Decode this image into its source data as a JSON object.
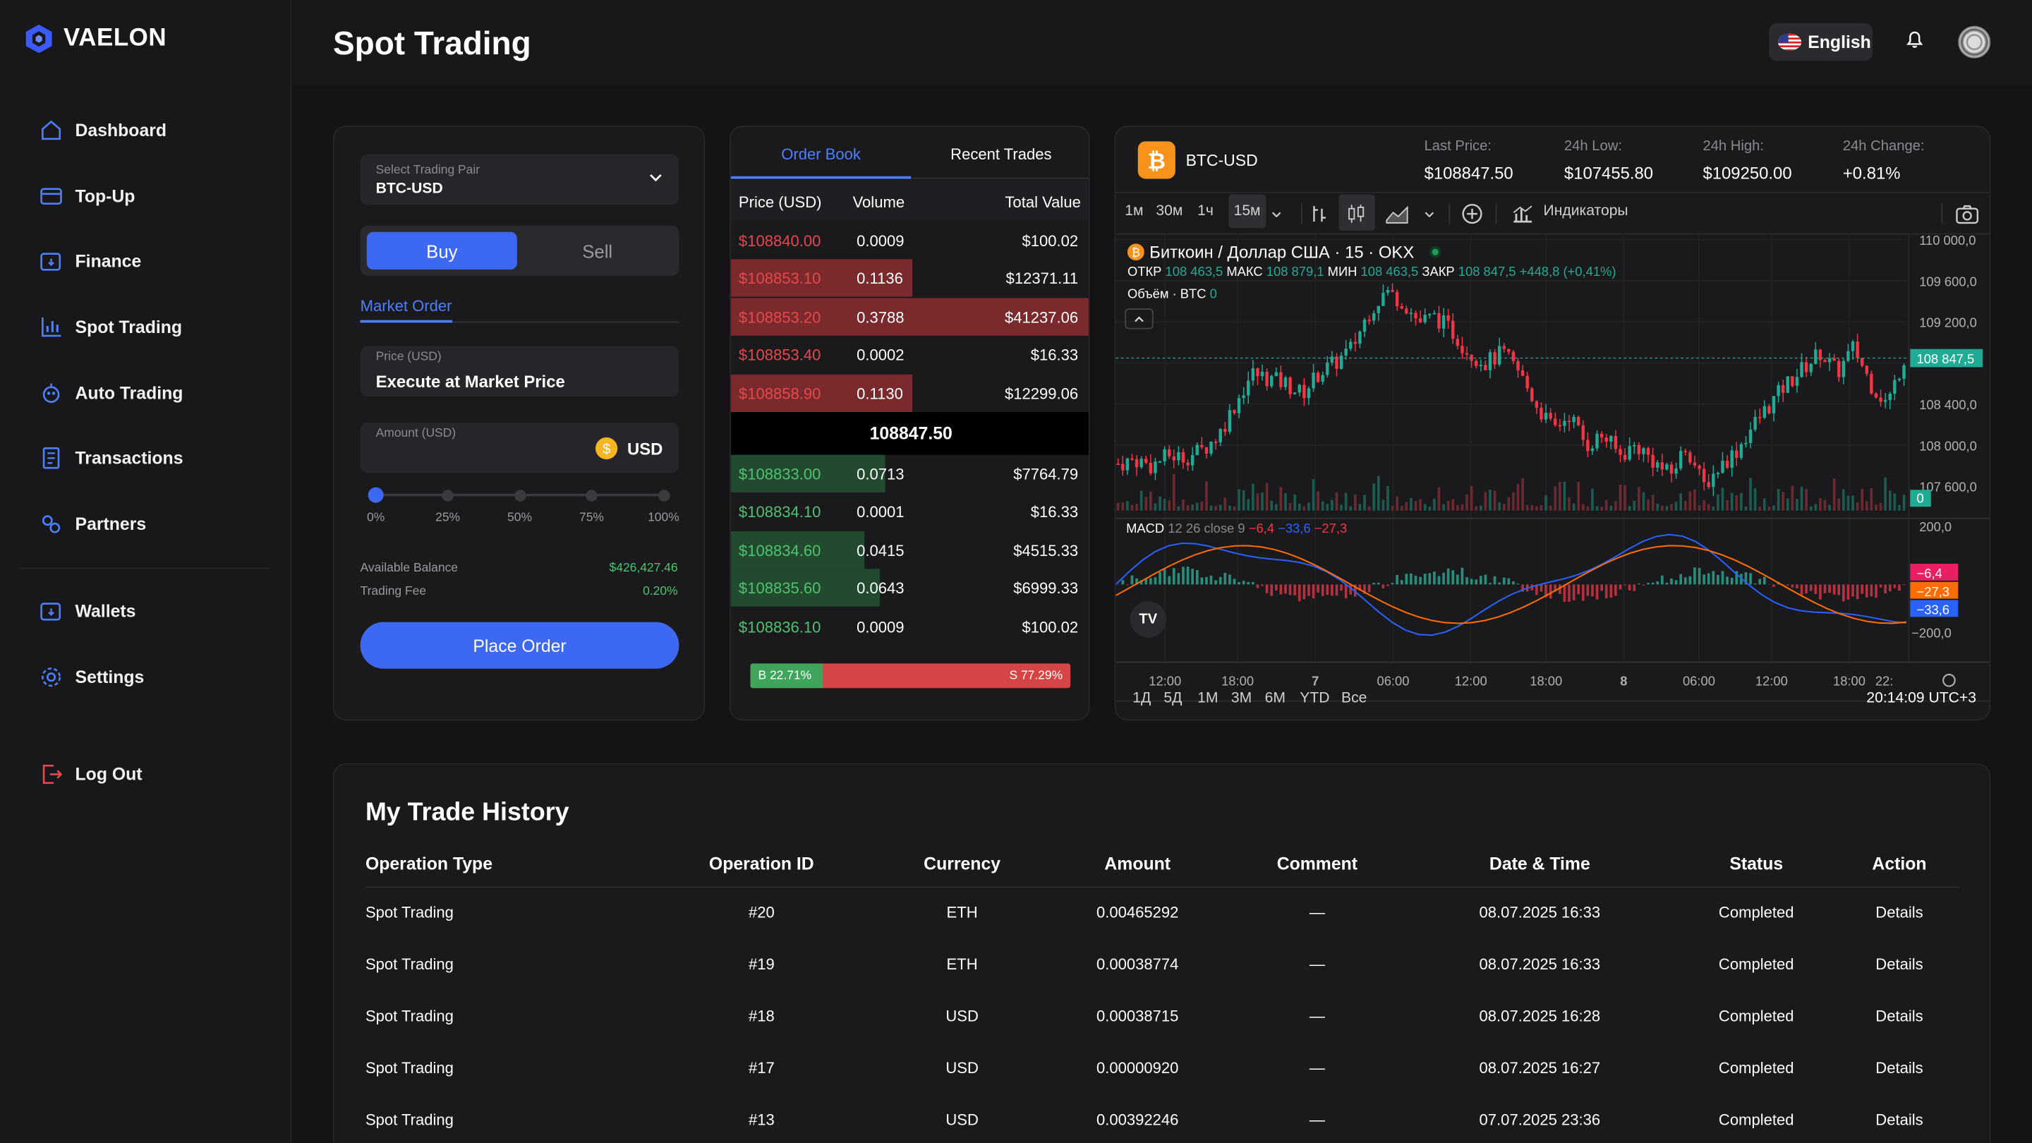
{
  "brand": {
    "name": "VAELON"
  },
  "nav": [
    {
      "label": "Dashboard",
      "icon": "home-icon"
    },
    {
      "label": "Top-Up",
      "icon": "card-icon"
    },
    {
      "label": "Finance",
      "icon": "wallet-icon"
    },
    {
      "label": "Spot Trading",
      "icon": "bar-chart-icon"
    },
    {
      "label": "Auto Trading",
      "icon": "robot-icon"
    },
    {
      "label": "Transactions",
      "icon": "document-icon"
    },
    {
      "label": "Partners",
      "icon": "users-icon"
    },
    {
      "label": "Wallets",
      "icon": "wallet-icon"
    },
    {
      "label": "Settings",
      "icon": "gear-icon"
    },
    {
      "label": "Log Out",
      "icon": "logout-icon"
    }
  ],
  "header": {
    "title": "Spot Trading",
    "language": "English"
  },
  "order_form": {
    "pair_label": "Select Trading Pair",
    "pair_value": "BTC-USD",
    "buy_label": "Buy",
    "sell_label": "Sell",
    "order_type_tab": "Market Order",
    "price_label": "Price (USD)",
    "price_value": "Execute at Market Price",
    "amount_label": "Amount (USD)",
    "amount_currency": "USD",
    "slider_marks": [
      "0%",
      "25%",
      "50%",
      "75%",
      "100%"
    ],
    "slider_value": 0,
    "balance_label": "Available Balance",
    "balance_value": "$426,427.46",
    "fee_label": "Trading Fee",
    "fee_value": "0.20%",
    "submit_label": "Place Order"
  },
  "order_book": {
    "tabs": [
      "Order Book",
      "Recent Trades"
    ],
    "columns": [
      "Price (USD)",
      "Volume",
      "Total Value"
    ],
    "asks": [
      {
        "price": "$108840.00",
        "volume": "0.0009",
        "total": "$100.02",
        "depth": 0.0
      },
      {
        "price": "$108853.10",
        "volume": "0.1136",
        "total": "$12371.11",
        "depth": 0.3
      },
      {
        "price": "$108853.20",
        "volume": "0.3788",
        "total": "$41237.06",
        "depth": 1.0
      },
      {
        "price": "$108853.40",
        "volume": "0.0002",
        "total": "$16.33",
        "depth": 0.0
      },
      {
        "price": "$108858.90",
        "volume": "0.1130",
        "total": "$12299.06",
        "depth": 0.3
      }
    ],
    "mid_price": "108847.50",
    "bids": [
      {
        "price": "$108833.00",
        "volume": "0.0713",
        "total": "$7764.79",
        "depth": 0.19
      },
      {
        "price": "$108834.10",
        "volume": "0.0001",
        "total": "$16.33",
        "depth": 0.0
      },
      {
        "price": "$108834.60",
        "volume": "0.0415",
        "total": "$4515.33",
        "depth": 0.11
      },
      {
        "price": "$108835.60",
        "volume": "0.0643",
        "total": "$6999.33",
        "depth": 0.17
      },
      {
        "price": "$108836.10",
        "volume": "0.0009",
        "total": "$100.02",
        "depth": 0.0
      }
    ],
    "buy_ratio_label": "B 22.71%",
    "sell_ratio_label": "S 77.29%",
    "buy_ratio": 22.71
  },
  "market": {
    "pair": "BTC-USD",
    "stats": [
      {
        "label": "Last Price:",
        "value": "$108847.50"
      },
      {
        "label": "24h Low:",
        "value": "$107455.80"
      },
      {
        "label": "24h High:",
        "value": "$109250.00"
      },
      {
        "label": "24h Change:",
        "value": "+0.81%"
      }
    ]
  },
  "tv": {
    "intervals": [
      "1м",
      "30м",
      "1ч",
      "15м"
    ],
    "indicators_label": "Индикаторы",
    "symbol_title": "Биткоин / Доллар США · 15 · OKX",
    "ohlc": {
      "o_lbl": "ОТКР",
      "o": "108 463,5",
      "h_lbl": "МАКС",
      "h": "108 879,1",
      "l_lbl": "МИН",
      "l": "108 463,5",
      "c_lbl": "ЗАКР",
      "c": "108 847,5",
      "chg": "+448,8 (+0,41%)"
    },
    "volume_label": "Объём · BTC",
    "volume_value": "0",
    "macd_label": "MACD",
    "macd_params": "12 26 close 9",
    "macd_vals": [
      "−6,4",
      "−33,6",
      "−27,3"
    ],
    "price_ticks": [
      "110 000,0",
      "109 600,0",
      "109 200,0",
      "108 400,0",
      "108 000,0",
      "107 600,0"
    ],
    "last_price_tag": "108 847,5",
    "vol_tag": "0",
    "macd_ticks": [
      "200,0",
      "−200,0"
    ],
    "macd_tags": [
      "−6,4",
      "−27,3",
      "−33,6"
    ],
    "time_ticks": [
      "12:00",
      "18:00",
      "7",
      "06:00",
      "12:00",
      "18:00",
      "8",
      "06:00",
      "12:00",
      "18:00",
      "22:"
    ],
    "ranges": [
      "1Д",
      "5Д",
      "1М",
      "3М",
      "6М",
      "YTD",
      "Все"
    ],
    "clock": "20:14:09 UTC+3"
  },
  "chart_data": {
    "type": "candlestick",
    "series": [
      {
        "values": [
          107820,
          107860,
          107800,
          107900,
          107880,
          107950,
          108100,
          108400,
          108700,
          108650,
          108600,
          108500,
          108700,
          108800,
          108950,
          109300,
          109500,
          109400,
          109200,
          109250,
          109100,
          108900,
          108800,
          108900,
          108700,
          108400,
          108150,
          108300,
          108000,
          108100,
          107900,
          108000,
          107850,
          107700,
          108000,
          107600,
          107800,
          107950,
          108200,
          108400,
          108600,
          108750,
          108900,
          108700,
          108950,
          108600,
          108400,
          108847
        ]
      }
    ]
  },
  "history": {
    "title": "My Trade History",
    "columns": [
      "Operation Type",
      "Operation ID",
      "Currency",
      "Amount",
      "Comment",
      "Date & Time",
      "Status",
      "Action"
    ],
    "rows": [
      {
        "type": "Spot Trading",
        "id": "#20",
        "currency": "ETH",
        "amount": "0.00465292",
        "comment": "—",
        "date": "08.07.2025 16:33",
        "status": "Completed",
        "action": "Details"
      },
      {
        "type": "Spot Trading",
        "id": "#19",
        "currency": "ETH",
        "amount": "0.00038774",
        "comment": "—",
        "date": "08.07.2025 16:33",
        "status": "Completed",
        "action": "Details"
      },
      {
        "type": "Spot Trading",
        "id": "#18",
        "currency": "USD",
        "amount": "0.00038715",
        "comment": "—",
        "date": "08.07.2025 16:28",
        "status": "Completed",
        "action": "Details"
      },
      {
        "type": "Spot Trading",
        "id": "#17",
        "currency": "USD",
        "amount": "0.00000920",
        "comment": "—",
        "date": "08.07.2025 16:27",
        "status": "Completed",
        "action": "Details"
      },
      {
        "type": "Spot Trading",
        "id": "#13",
        "currency": "USD",
        "amount": "0.00392246",
        "comment": "—",
        "date": "07.07.2025 23:36",
        "status": "Completed",
        "action": "Details"
      }
    ]
  }
}
